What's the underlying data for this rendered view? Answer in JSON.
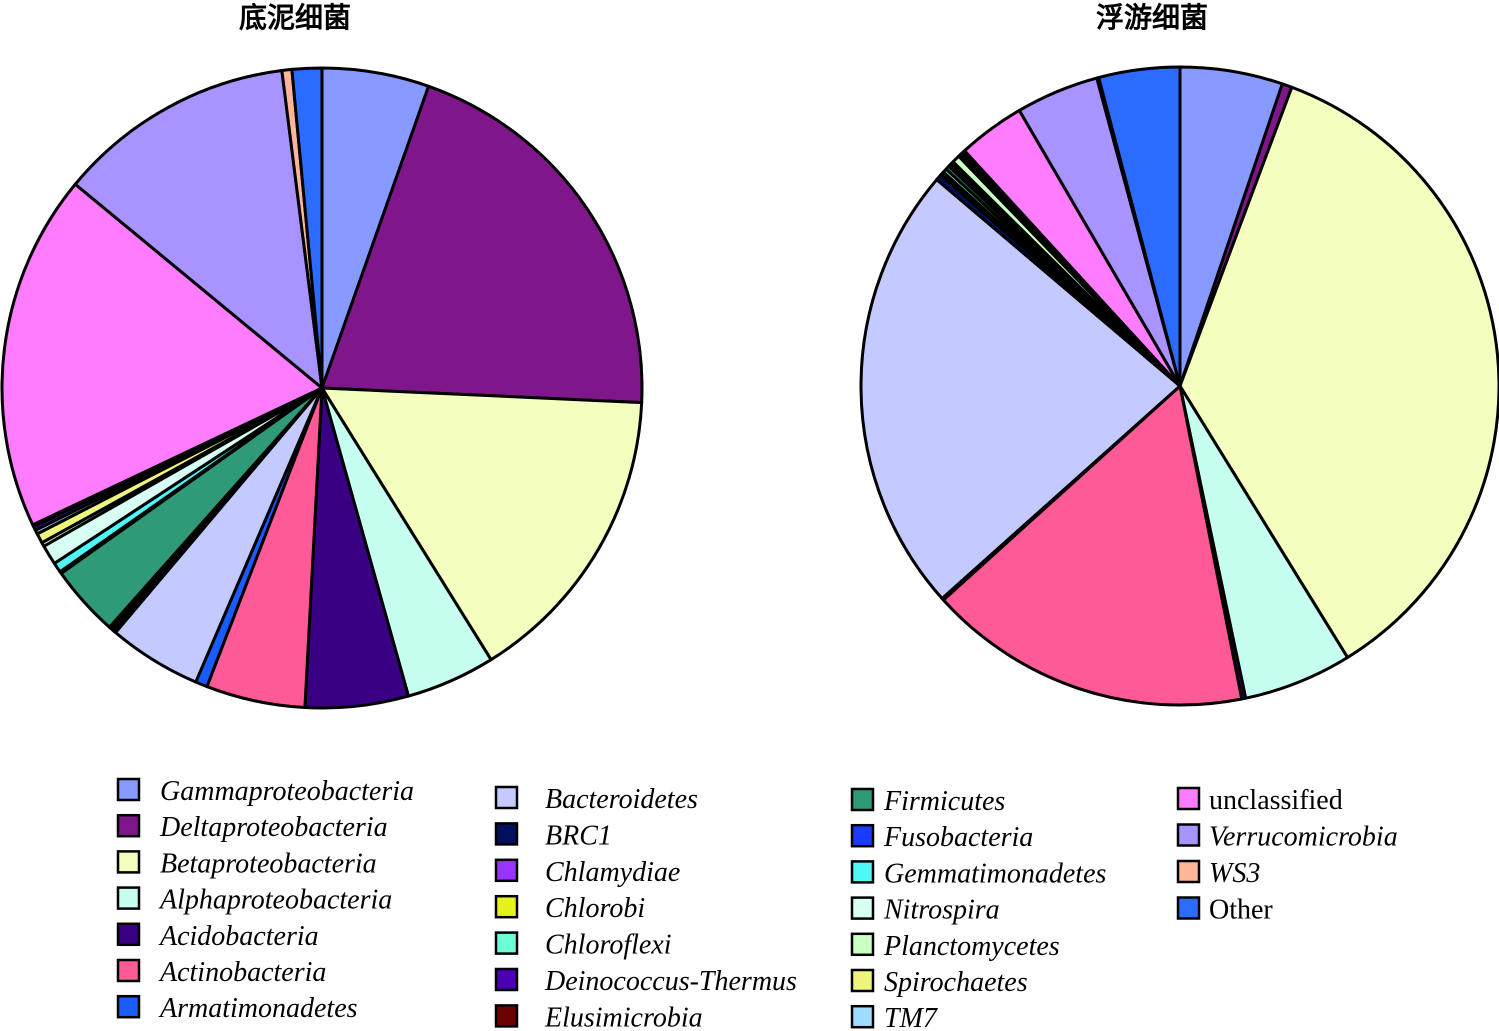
{
  "chart_data": [
    {
      "type": "pie",
      "title": "底泥细菌",
      "slices": [
        {
          "name": "Gammaproteobacteria",
          "value": 5.4
        },
        {
          "name": "Deltaproteobacteria",
          "value": 20.3
        },
        {
          "name": "Betaproteobacteria",
          "value": 15.4
        },
        {
          "name": "Alphaproteobacteria",
          "value": 4.5
        },
        {
          "name": "Acidobacteria",
          "value": 5.2
        },
        {
          "name": "Actinobacteria",
          "value": 5.0
        },
        {
          "name": "Armatimonadetes",
          "value": 0.6
        },
        {
          "name": "Bacteroidetes",
          "value": 4.7
        },
        {
          "name": "BRC1",
          "value": 0.1
        },
        {
          "name": "Chlamydiae",
          "value": 0.1
        },
        {
          "name": "Chlorobi",
          "value": 0.1
        },
        {
          "name": "Chloroflexi",
          "value": 0.1
        },
        {
          "name": "Firmicutes",
          "value": 3.6
        },
        {
          "name": "Fusobacteria",
          "value": 0.1
        },
        {
          "name": "Gemmatimonadetes",
          "value": 0.5
        },
        {
          "name": "Nitrospira",
          "value": 1.0
        },
        {
          "name": "Planctomycetes",
          "value": 0.2
        },
        {
          "name": "Spirochaetes",
          "value": 0.5
        },
        {
          "name": "TM7",
          "value": 0.2
        },
        {
          "name": "Deinococcus-Thermus",
          "value": 0.2
        },
        {
          "name": "Elusimicrobia",
          "value": 0.1
        },
        {
          "name": "unclassified",
          "value": 18.0
        },
        {
          "name": "Verrucomicrobia",
          "value": 12.0
        },
        {
          "name": "WS3",
          "value": 0.5
        },
        {
          "name": "Other",
          "value": 1.5
        }
      ]
    },
    {
      "type": "pie",
      "title": "浮游细菌",
      "slices": [
        {
          "name": "Gammaproteobacteria",
          "value": 5.2
        },
        {
          "name": "Deltaproteobacteria",
          "value": 0.5
        },
        {
          "name": "Betaproteobacteria",
          "value": 35.5
        },
        {
          "name": "Alphaproteobacteria",
          "value": 5.5
        },
        {
          "name": "Acidobacteria",
          "value": 0.2
        },
        {
          "name": "Actinobacteria",
          "value": 16.4
        },
        {
          "name": "Armatimonadetes",
          "value": 0.1
        },
        {
          "name": "Bacteroidetes",
          "value": 22.8
        },
        {
          "name": "BRC1",
          "value": 0.3
        },
        {
          "name": "Chlamydiae",
          "value": 0.1
        },
        {
          "name": "Chlorobi",
          "value": 0.1
        },
        {
          "name": "Chloroflexi",
          "value": 0.2
        },
        {
          "name": "Firmicutes",
          "value": 0.2
        },
        {
          "name": "Fusobacteria",
          "value": 0.1
        },
        {
          "name": "Gemmatimonadetes",
          "value": 0.1
        },
        {
          "name": "Nitrospira",
          "value": 0.1
        },
        {
          "name": "Planctomycetes",
          "value": 0.4
        },
        {
          "name": "Spirochaetes",
          "value": 0.1
        },
        {
          "name": "TM7",
          "value": 0.1
        },
        {
          "name": "Deinococcus-Thermus",
          "value": 0.1
        },
        {
          "name": "Elusimicrobia",
          "value": 0.1
        },
        {
          "name": "unclassified",
          "value": 3.4
        },
        {
          "name": "Verrucomicrobia",
          "value": 4.2
        },
        {
          "name": "WS3",
          "value": 0.1
        },
        {
          "name": "Other",
          "value": 4.1
        }
      ]
    }
  ],
  "legend": [
    {
      "name": "Gammaproteobacteria",
      "color": "#8899FF",
      "italic": true
    },
    {
      "name": "Deltaproteobacteria",
      "color": "#7F178B",
      "italic": true
    },
    {
      "name": "Betaproteobacteria",
      "color": "#F4FFBF",
      "italic": true
    },
    {
      "name": "Alphaproteobacteria",
      "color": "#C6FFEF",
      "italic": true
    },
    {
      "name": "Acidobacteria",
      "color": "#3A0083",
      "italic": true
    },
    {
      "name": "Actinobacteria",
      "color": "#FF5A98",
      "italic": true
    },
    {
      "name": "Armatimonadetes",
      "color": "#1A5CFF",
      "italic": true
    },
    {
      "name": "Bacteroidetes",
      "color": "#C4CAFF",
      "italic": true
    },
    {
      "name": "BRC1",
      "color": "#00105C",
      "italic": true
    },
    {
      "name": "Chlamydiae",
      "color": "#9933FF",
      "italic": true
    },
    {
      "name": "Chlorobi",
      "color": "#E6F21A",
      "italic": true
    },
    {
      "name": "Chloroflexi",
      "color": "#6CFFD8",
      "italic": true
    },
    {
      "name": "Deinococcus-Thermus",
      "color": "#4B00B5",
      "italic": true
    },
    {
      "name": "Elusimicrobia",
      "color": "#6A0000",
      "italic": true
    },
    {
      "name": "Firmicutes",
      "color": "#2F9A78",
      "italic": true
    },
    {
      "name": "Fusobacteria",
      "color": "#1A3CFF",
      "italic": true
    },
    {
      "name": "Gemmatimonadetes",
      "color": "#4FF7F7",
      "italic": true
    },
    {
      "name": "Nitrospira",
      "color": "#D7FFF4",
      "italic": true
    },
    {
      "name": "Planctomycetes",
      "color": "#CCFFC2",
      "italic": true
    },
    {
      "name": "Spirochaetes",
      "color": "#EEF57A",
      "italic": true
    },
    {
      "name": "TM7",
      "color": "#9EDCFF",
      "italic": true
    },
    {
      "name": "unclassified",
      "color": "#FF7CFF",
      "italic": false
    },
    {
      "name": "Verrucomicrobia",
      "color": "#A994FF",
      "italic": true
    },
    {
      "name": "WS3",
      "color": "#FFB59A",
      "italic": true
    },
    {
      "name": "Other",
      "color": "#2B6CFF",
      "italic": false
    }
  ]
}
